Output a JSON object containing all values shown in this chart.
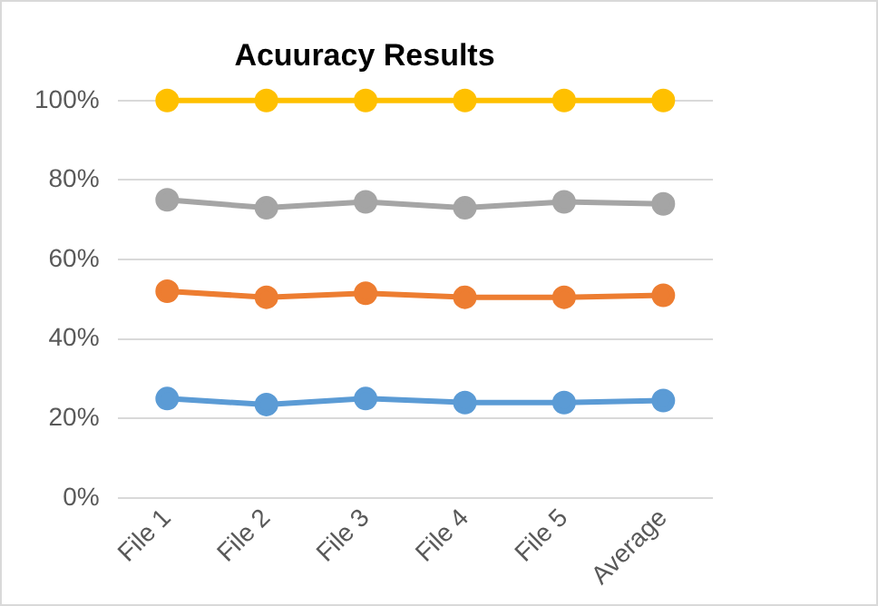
{
  "chart_data": {
    "type": "line",
    "title": "Acuuracy Results",
    "categories": [
      "File 1",
      "File 2",
      "File 3",
      "File 4",
      "File 5",
      "Average"
    ],
    "series": [
      {
        "color": "#5b9bd5",
        "values": [
          25,
          23.5,
          25,
          24,
          24,
          24.5
        ]
      },
      {
        "color": "#ed7d31",
        "values": [
          52,
          50.5,
          51.5,
          50.5,
          50.5,
          51
        ]
      },
      {
        "color": "#a5a5a5",
        "values": [
          75,
          73,
          74.5,
          73,
          74.5,
          74
        ]
      },
      {
        "color": "#ffc000",
        "values": [
          100,
          100,
          100,
          100,
          100,
          100
        ]
      }
    ],
    "ylim": [
      0,
      100
    ],
    "yticks": [
      {
        "value": 0,
        "label": "0%"
      },
      {
        "value": 20,
        "label": "20%"
      },
      {
        "value": 40,
        "label": "40%"
      },
      {
        "value": 60,
        "label": "60%"
      },
      {
        "value": 80,
        "label": "80%"
      },
      {
        "value": 100,
        "label": "100%"
      }
    ],
    "grid": "y",
    "marker": "circle",
    "line_style": "solid"
  }
}
